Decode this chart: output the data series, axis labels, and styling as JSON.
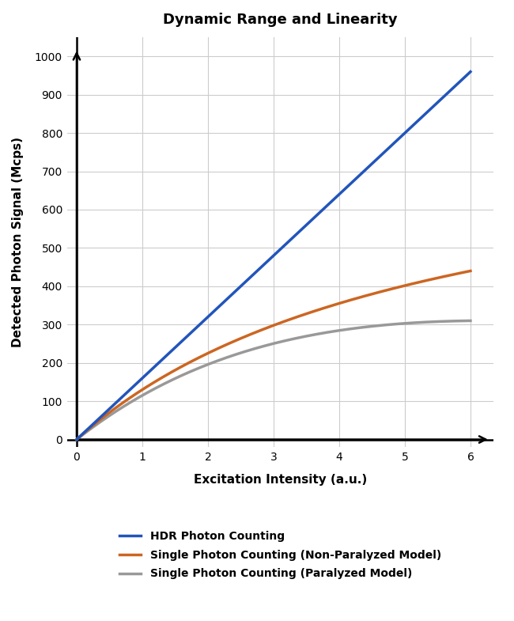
{
  "title": "Dynamic Range and Linearity",
  "xlabel": "Excitation Intensity (a.u.)",
  "ylabel": "Detected Photon Signal (Mcps)",
  "xlim": [
    0,
    6.0
  ],
  "ylim": [
    0,
    1000
  ],
  "xticks": [
    0,
    1,
    2,
    3,
    4,
    5,
    6
  ],
  "yticks": [
    0,
    100,
    200,
    300,
    400,
    500,
    600,
    700,
    800,
    900,
    1000
  ],
  "hdr_color": "#2255bb",
  "non_paralyzed_color": "#cc6622",
  "paralyzed_color": "#999999",
  "hdr_label": "HDR Photon Counting",
  "non_paralyzed_label": "Single Photon Counting (Non-Paralyzed Model)",
  "paralyzed_label": "Single Photon Counting (Paralyzed Model)",
  "background_color": "#ffffff",
  "title_fontsize": 13,
  "label_fontsize": 11,
  "tick_fontsize": 10,
  "legend_fontsize": 10,
  "hdr_slope": 160.0,
  "A_np": 153.76,
  "B_np": 0.1828,
  "S_p": 134.9,
  "alpha_p": 0.16
}
